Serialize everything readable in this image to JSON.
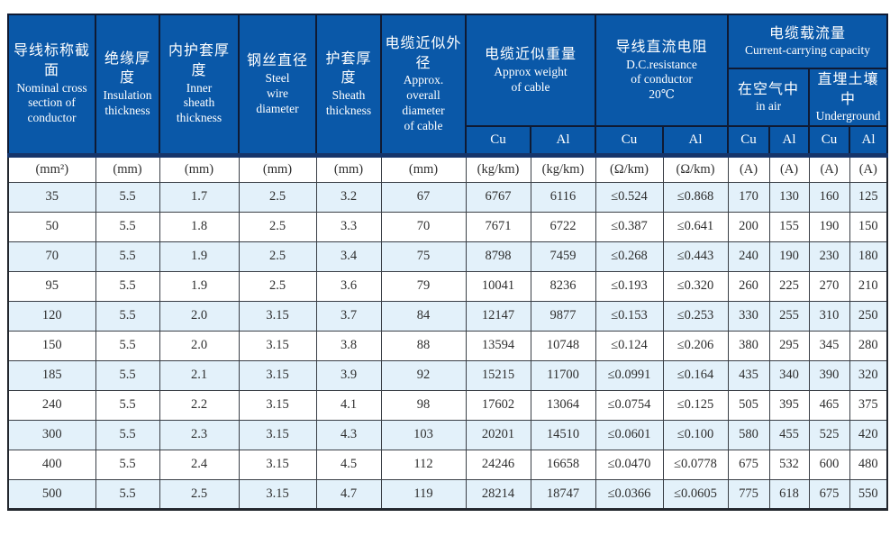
{
  "colors": {
    "header_bg": "#0a58a8",
    "header_text": "#ffffff",
    "header_line": "#0f1a33",
    "header_bottom_bar": "#15356b",
    "body_line": "#3a3f46",
    "outer_line": "#23272e",
    "row_alt_bg": "#e3f1fa",
    "row_bg": "#ffffff",
    "body_text": "#2e2e2e",
    "page_bg": "#ffffff"
  },
  "header": {
    "nominal": {
      "zh": "导线标称截面",
      "en": "Nominal  cross\nsection of\nconductor"
    },
    "insulation": {
      "zh": "绝缘厚度",
      "en": "Insulation\nthickness"
    },
    "inner_sheath": {
      "zh": "内护套厚度",
      "en": "Inner\nsheath\nthickness"
    },
    "steel_wire": {
      "zh": "钢丝直径",
      "en": "Steel\nwire\ndiameter"
    },
    "sheath": {
      "zh": "护套厚度",
      "en": "Sheath\nthickness"
    },
    "overall_diameter": {
      "zh": "电缆近似外径",
      "en": "Approx.\noverall\ndiameter\nof cable"
    },
    "weight": {
      "zh": "电缆近似重量",
      "en": "Approx weight\nof cable",
      "sub": [
        "Cu",
        "Al"
      ]
    },
    "resistance": {
      "zh": "导线直流电阻",
      "en": "D.C.resistance\nof conductor\n20℃",
      "sub": [
        "Cu",
        "Al"
      ]
    },
    "capacity": {
      "zh": "电缆载流量",
      "en": "Current-carrying capacity",
      "in_air": {
        "zh": "在空气中",
        "en": "in air",
        "sub": [
          "Cu",
          "Al"
        ]
      },
      "underground": {
        "zh": "直埋土壤中",
        "en": "Underground",
        "sub": [
          "Cu",
          "Al"
        ]
      }
    }
  },
  "units": [
    "(mm²)",
    "(mm)",
    "(mm)",
    "(mm)",
    "(mm)",
    "(mm)",
    "(kg/km)",
    "(kg/km)",
    "(Ω/km)",
    "(Ω/km)",
    "(A)",
    "(A)",
    "(A)",
    "(A)"
  ],
  "rows": [
    [
      "35",
      "5.5",
      "1.7",
      "2.5",
      "3.2",
      "67",
      "6767",
      "6116",
      "≤0.524",
      "≤0.868",
      "170",
      "130",
      "160",
      "125"
    ],
    [
      "50",
      "5.5",
      "1.8",
      "2.5",
      "3.3",
      "70",
      "7671",
      "6722",
      "≤0.387",
      "≤0.641",
      "200",
      "155",
      "190",
      "150"
    ],
    [
      "70",
      "5.5",
      "1.9",
      "2.5",
      "3.4",
      "75",
      "8798",
      "7459",
      "≤0.268",
      "≤0.443",
      "240",
      "190",
      "230",
      "180"
    ],
    [
      "95",
      "5.5",
      "1.9",
      "2.5",
      "3.6",
      "79",
      "10041",
      "8236",
      "≤0.193",
      "≤0.320",
      "260",
      "225",
      "270",
      "210"
    ],
    [
      "120",
      "5.5",
      "2.0",
      "3.15",
      "3.7",
      "84",
      "12147",
      "9877",
      "≤0.153",
      "≤0.253",
      "330",
      "255",
      "310",
      "250"
    ],
    [
      "150",
      "5.5",
      "2.0",
      "3.15",
      "3.8",
      "88",
      "13594",
      "10748",
      "≤0.124",
      "≤0.206",
      "380",
      "295",
      "345",
      "280"
    ],
    [
      "185",
      "5.5",
      "2.1",
      "3.15",
      "3.9",
      "92",
      "15215",
      "11700",
      "≤0.0991",
      "≤0.164",
      "435",
      "340",
      "390",
      "320"
    ],
    [
      "240",
      "5.5",
      "2.2",
      "3.15",
      "4.1",
      "98",
      "17602",
      "13064",
      "≤0.0754",
      "≤0.125",
      "505",
      "395",
      "465",
      "375"
    ],
    [
      "300",
      "5.5",
      "2.3",
      "3.15",
      "4.3",
      "103",
      "20201",
      "14510",
      "≤0.0601",
      "≤0.100",
      "580",
      "455",
      "525",
      "420"
    ],
    [
      "400",
      "5.5",
      "2.4",
      "3.15",
      "4.5",
      "112",
      "24246",
      "16658",
      "≤0.0470",
      "≤0.0778",
      "675",
      "532",
      "600",
      "480"
    ],
    [
      "500",
      "5.5",
      "2.5",
      "3.15",
      "4.7",
      "119",
      "28214",
      "18747",
      "≤0.0366",
      "≤0.0605",
      "775",
      "618",
      "675",
      "550"
    ]
  ]
}
